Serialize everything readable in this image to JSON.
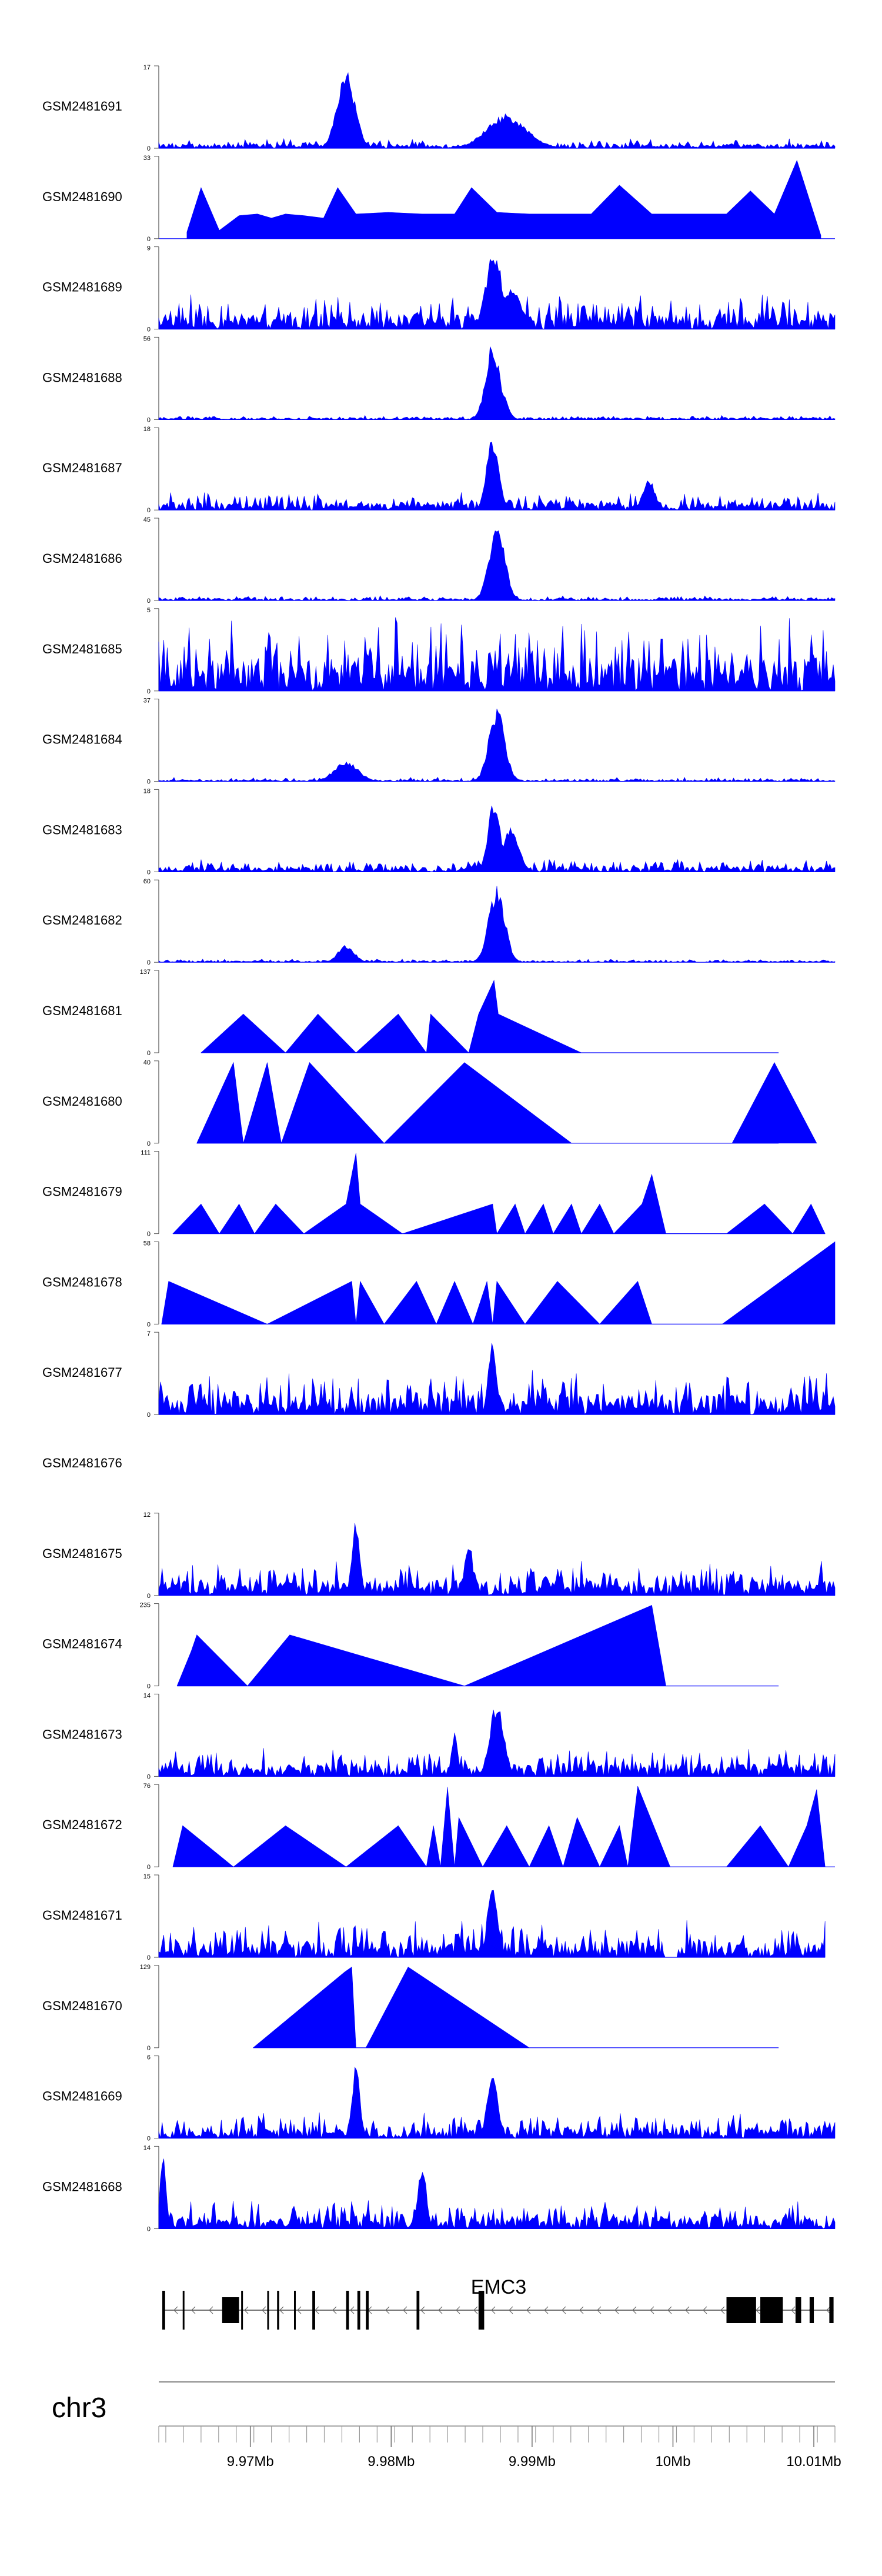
{
  "chart_data": {
    "type": "area",
    "title": "",
    "chromosome": "chr3",
    "gene": "EMC3",
    "xlim": [
      9.9635,
      10.0115
    ],
    "x_ticks": [
      {
        "value": 9.97,
        "label": "9.97Mb"
      },
      {
        "value": 9.98,
        "label": "9.98Mb"
      },
      {
        "value": 9.99,
        "label": "9.99Mb"
      },
      {
        "value": 10.0,
        "label": "10Mb"
      },
      {
        "value": 10.01,
        "label": "10.01Mb"
      }
    ],
    "fill_color": "#0000FF",
    "tracks": [
      {
        "name": "GSM2481691",
        "ymax": "17",
        "style": "dense",
        "peaks": [
          [
            9.9768,
            0.95,
            0.0009
          ],
          [
            9.9882,
            0.42,
            0.002
          ]
        ],
        "xrange": [
          9.9635,
          10.0115
        ],
        "noise": 0.12,
        "seed": 1
      },
      {
        "name": "GSM2481690",
        "ymax": "33",
        "style": "sparse",
        "tri": [
          [
            9.9655,
            0.08
          ],
          [
            9.9665,
            0.62
          ],
          [
            9.9678,
            0.1
          ],
          [
            9.9692,
            0.28
          ],
          [
            9.9705,
            0.3
          ],
          [
            9.9715,
            0.25
          ],
          [
            9.9725,
            0.3
          ],
          [
            9.9738,
            0.28
          ],
          [
            9.9752,
            0.25
          ],
          [
            9.9762,
            0.62
          ],
          [
            9.9775,
            0.3
          ],
          [
            9.9798,
            0.32
          ],
          [
            9.9822,
            0.3
          ],
          [
            9.9845,
            0.3
          ],
          [
            9.9857,
            0.62
          ],
          [
            9.9875,
            0.32
          ],
          [
            9.9898,
            0.3
          ],
          [
            9.9918,
            0.3
          ],
          [
            9.9942,
            0.3
          ],
          [
            9.9962,
            0.65
          ],
          [
            9.9985,
            0.3
          ],
          [
            10.0008,
            0.3
          ],
          [
            10.0022,
            0.3
          ],
          [
            10.0038,
            0.3
          ],
          [
            10.0055,
            0.58
          ],
          [
            10.0072,
            0.3
          ],
          [
            10.0088,
            0.95
          ],
          [
            10.0105,
            0.04
          ]
        ],
        "xrange": [
          9.9635,
          10.0115
        ],
        "seed": 2
      },
      {
        "name": "GSM2481689",
        "ymax": "9",
        "style": "dense",
        "peaks": [
          [
            9.9873,
            0.98,
            0.0008
          ],
          [
            9.9885,
            0.5,
            0.001
          ]
        ],
        "xrange": [
          9.9635,
          10.0115
        ],
        "noise": 0.42,
        "seed": 3
      },
      {
        "name": "GSM2481688",
        "ymax": "56",
        "style": "dense",
        "peaks": [
          [
            9.9872,
            0.95,
            0.0007
          ],
          [
            9.9878,
            0.4,
            0.0006
          ]
        ],
        "xrange": [
          9.9635,
          10.0115
        ],
        "noise": 0.05,
        "seed": 4
      },
      {
        "name": "GSM2481687",
        "ymax": "18",
        "style": "dense",
        "peaks": [
          [
            9.9872,
            0.92,
            0.0006
          ],
          [
            9.9983,
            0.4,
            0.0006
          ]
        ],
        "xrange": [
          9.9635,
          10.0115
        ],
        "noise": 0.22,
        "seed": 5
      },
      {
        "name": "GSM2481686",
        "ymax": "45",
        "style": "dense",
        "peaks": [
          [
            9.9875,
            0.94,
            0.0008
          ]
        ],
        "xrange": [
          9.9635,
          10.0115
        ],
        "noise": 0.06,
        "seed": 6
      },
      {
        "name": "GSM2481685",
        "ymax": "5",
        "style": "dense",
        "peaks": [],
        "xrange": [
          9.9635,
          10.0115
        ],
        "noise": 0.9,
        "seed": 7
      },
      {
        "name": "GSM2481684",
        "ymax": "37",
        "style": "dense",
        "peaks": [
          [
            9.9875,
            0.9,
            0.0008
          ],
          [
            9.9768,
            0.25,
            0.0012
          ]
        ],
        "xrange": [
          9.9635,
          10.0115
        ],
        "noise": 0.05,
        "seed": 8
      },
      {
        "name": "GSM2481683",
        "ymax": "18",
        "style": "dense",
        "peaks": [
          [
            9.9873,
            0.92,
            0.0006
          ],
          [
            9.9885,
            0.55,
            0.0008
          ]
        ],
        "xrange": [
          9.9635,
          10.0115
        ],
        "noise": 0.15,
        "seed": 9
      },
      {
        "name": "GSM2481682",
        "ymax": "60",
        "style": "dense",
        "peaks": [
          [
            9.9875,
            0.95,
            0.0008
          ],
          [
            9.9768,
            0.22,
            0.0008
          ]
        ],
        "xrange": [
          9.9635,
          10.0115
        ],
        "noise": 0.04,
        "seed": 10
      },
      {
        "name": "GSM2481681",
        "ymax": "137",
        "style": "sparse",
        "tri": [
          [
            9.9665,
            0.0
          ],
          [
            9.9695,
            0.47
          ],
          [
            9.9725,
            0.0
          ],
          [
            9.9748,
            0.47
          ],
          [
            9.9775,
            0.0
          ],
          [
            9.9805,
            0.47
          ],
          [
            9.9825,
            0.0
          ],
          [
            9.9828,
            0.47
          ],
          [
            9.9855,
            0.0
          ],
          [
            9.9862,
            0.47
          ],
          [
            9.9873,
            0.88
          ],
          [
            9.9876,
            0.47
          ],
          [
            9.9935,
            0.0
          ]
        ],
        "xrange": [
          9.9665,
          10.0075
        ],
        "seed": 11
      },
      {
        "name": "GSM2481680",
        "ymax": "40",
        "style": "sparse",
        "tri": [
          [
            9.9662,
            0.0
          ],
          [
            9.9688,
            0.98
          ],
          [
            9.9695,
            0.0
          ],
          [
            9.9712,
            0.98
          ],
          [
            9.9722,
            0.0
          ],
          [
            9.9742,
            0.98
          ],
          [
            9.9795,
            0.0
          ],
          [
            9.9852,
            0.98
          ],
          [
            9.9928,
            0.0
          ],
          [
            10.0042,
            0.0
          ],
          [
            10.0072,
            0.98
          ],
          [
            10.0102,
            0.0
          ]
        ],
        "xrange": [
          9.9662,
          10.0075
        ],
        "seed": 12
      },
      {
        "name": "GSM2481679",
        "ymax": "111",
        "style": "sparse",
        "tri": [
          [
            9.9645,
            0.0
          ],
          [
            9.9665,
            0.36
          ],
          [
            9.9678,
            0.0
          ],
          [
            9.9692,
            0.36
          ],
          [
            9.9703,
            0.0
          ],
          [
            9.9718,
            0.36
          ],
          [
            9.9738,
            0.0
          ],
          [
            9.9768,
            0.36
          ],
          [
            9.9775,
            0.98
          ],
          [
            9.9778,
            0.36
          ],
          [
            9.9808,
            0.0
          ],
          [
            9.9872,
            0.36
          ],
          [
            9.9875,
            0.0
          ],
          [
            9.9888,
            0.36
          ],
          [
            9.9895,
            0.0
          ],
          [
            9.9908,
            0.36
          ],
          [
            9.9915,
            0.0
          ],
          [
            9.9928,
            0.36
          ],
          [
            9.9935,
            0.0
          ],
          [
            9.9948,
            0.36
          ],
          [
            9.9958,
            0.0
          ],
          [
            9.9978,
            0.36
          ],
          [
            9.9985,
            0.72
          ],
          [
            9.9995,
            0.0
          ],
          [
            10.0038,
            0.0
          ],
          [
            10.0065,
            0.36
          ],
          [
            10.0085,
            0.0
          ],
          [
            10.0098,
            0.36
          ],
          [
            10.0108,
            0.0
          ]
        ],
        "xrange": [
          9.9645,
          10.0108
        ],
        "seed": 13
      },
      {
        "name": "GSM2481678",
        "ymax": "58",
        "style": "sparse",
        "tri": [
          [
            9.9637,
            0.0
          ],
          [
            9.9642,
            0.52
          ],
          [
            9.9712,
            0.0
          ],
          [
            9.9772,
            0.52
          ],
          [
            9.9775,
            0.0
          ],
          [
            9.9778,
            0.52
          ],
          [
            9.9795,
            0.0
          ],
          [
            9.9818,
            0.52
          ],
          [
            9.9832,
            0.0
          ],
          [
            9.9845,
            0.52
          ],
          [
            9.9858,
            0.0
          ],
          [
            9.9868,
            0.52
          ],
          [
            9.9872,
            0.0
          ],
          [
            9.9875,
            0.52
          ],
          [
            9.9895,
            0.0
          ],
          [
            9.9918,
            0.52
          ],
          [
            9.9948,
            0.0
          ],
          [
            9.9975,
            0.52
          ],
          [
            9.9985,
            0.0
          ],
          [
            10.0035,
            0.0
          ],
          [
            10.0115,
            1.0
          ]
        ],
        "xrange": [
          9.9637,
          10.0115
        ],
        "seed": 14
      },
      {
        "name": "GSM2481677",
        "ymax": "7",
        "style": "dense",
        "peaks": [
          [
            9.9872,
            0.95,
            0.0004
          ]
        ],
        "xrange": [
          9.9635,
          10.0115
        ],
        "noise": 0.55,
        "seed": 15
      },
      {
        "name": "GSM2481676",
        "ymax": "",
        "style": "empty",
        "xrange": [
          9.9635,
          10.0115
        ],
        "seed": 16
      },
      {
        "name": "GSM2481675",
        "ymax": "12",
        "style": "dense",
        "peaks": [
          [
            9.9775,
            0.92,
            0.0004
          ],
          [
            9.9855,
            0.7,
            0.0004
          ]
        ],
        "xrange": [
          9.9635,
          10.0115
        ],
        "noise": 0.42,
        "seed": 17
      },
      {
        "name": "GSM2481674",
        "ymax": "235",
        "style": "sparse",
        "tri": [
          [
            9.9648,
            0.0
          ],
          [
            9.9658,
            0.42
          ],
          [
            9.9662,
            0.62
          ],
          [
            9.9698,
            0.0
          ],
          [
            9.9728,
            0.62
          ],
          [
            9.9852,
            0.0
          ],
          [
            9.9985,
            0.98
          ],
          [
            9.9995,
            0.0
          ]
        ],
        "xrange": [
          9.9648,
          10.0075
        ],
        "seed": 18
      },
      {
        "name": "GSM2481673",
        "ymax": "14",
        "style": "dense",
        "peaks": [
          [
            9.9875,
            0.92,
            0.0007
          ],
          [
            9.9845,
            0.55,
            0.0003
          ]
        ],
        "xrange": [
          9.9635,
          10.0115
        ],
        "noise": 0.35,
        "seed": 19
      },
      {
        "name": "GSM2481672",
        "ymax": "76",
        "style": "sparse",
        "tri": [
          [
            9.9645,
            0.0
          ],
          [
            9.9652,
            0.5
          ],
          [
            9.9688,
            0.0
          ],
          [
            9.9725,
            0.5
          ],
          [
            9.9768,
            0.0
          ],
          [
            9.9805,
            0.5
          ],
          [
            9.9825,
            0.0
          ],
          [
            9.983,
            0.5
          ],
          [
            9.9835,
            0.0
          ],
          [
            9.984,
            0.97
          ],
          [
            9.9845,
            0.0
          ],
          [
            9.9848,
            0.6
          ],
          [
            9.9865,
            0.0
          ],
          [
            9.9882,
            0.5
          ],
          [
            9.9898,
            0.0
          ],
          [
            9.9912,
            0.5
          ],
          [
            9.9922,
            0.0
          ],
          [
            9.9932,
            0.6
          ],
          [
            9.9948,
            0.0
          ],
          [
            9.9962,
            0.5
          ],
          [
            9.9968,
            0.0
          ],
          [
            9.9975,
            0.98
          ],
          [
            9.9998,
            0.0
          ],
          [
            10.0038,
            0.0
          ],
          [
            10.0062,
            0.5
          ],
          [
            10.0082,
            0.0
          ],
          [
            10.0095,
            0.5
          ],
          [
            10.0102,
            0.94
          ],
          [
            10.0108,
            0.0
          ]
        ],
        "xrange": [
          9.9645,
          10.0115
        ],
        "seed": 20
      },
      {
        "name": "GSM2481671",
        "ymax": "15",
        "style": "dense",
        "peaks": [
          [
            9.9872,
            0.95,
            0.0005
          ]
        ],
        "xrange": [
          9.9635,
          10.0108
        ],
        "noise": 0.45,
        "gap": [
          9.9995,
          10.0003
        ],
        "seed": 21
      },
      {
        "name": "GSM2481670",
        "ymax": "129",
        "style": "sparse",
        "tri": [
          [
            9.9702,
            0.0
          ],
          [
            9.9767,
            0.92
          ],
          [
            9.9772,
            0.98
          ],
          [
            9.9775,
            0.0
          ],
          [
            9.9782,
            0.0
          ],
          [
            9.9812,
            0.98
          ],
          [
            9.9898,
            0.0
          ]
        ],
        "xrange": [
          9.9702,
          10.0075
        ],
        "seed": 22
      },
      {
        "name": "GSM2481669",
        "ymax": "6",
        "style": "dense",
        "peaks": [
          [
            9.9872,
            0.95,
            0.0005
          ],
          [
            9.9775,
            0.9,
            0.0004
          ]
        ],
        "xrange": [
          9.9635,
          10.0115
        ],
        "noise": 0.32,
        "seed": 23
      },
      {
        "name": "GSM2481668",
        "ymax": "14",
        "style": "dense",
        "peaks": [
          [
            9.9638,
            0.95,
            0.0003
          ],
          [
            9.9822,
            0.82,
            0.0004
          ]
        ],
        "xrange": [
          9.9635,
          10.0115
        ],
        "noise": 0.36,
        "seed": 24
      }
    ],
    "gene_exons": [
      [
        9.96375,
        9.96395,
        "s"
      ],
      [
        9.9652,
        9.9653,
        "s"
      ],
      [
        9.968,
        9.9692,
        "b"
      ],
      [
        9.96935,
        9.96945,
        "s"
      ],
      [
        9.9712,
        9.9713,
        "s"
      ],
      [
        9.9719,
        9.97205,
        "s"
      ],
      [
        9.9731,
        9.9732,
        "s"
      ],
      [
        9.9744,
        9.9746,
        "s"
      ],
      [
        9.9768,
        9.977,
        "s"
      ],
      [
        9.9776,
        9.9778,
        "s"
      ],
      [
        9.9782,
        9.9784,
        "s"
      ],
      [
        9.9818,
        9.982,
        "s"
      ],
      [
        9.9862,
        9.9866,
        "s"
      ],
      [
        10.0038,
        10.0059,
        "b"
      ],
      [
        10.0062,
        10.0078,
        "b"
      ],
      [
        10.0087,
        10.0091,
        "b"
      ],
      [
        10.0097,
        10.01,
        "b"
      ],
      [
        10.0111,
        10.0114,
        "b"
      ]
    ],
    "gene_range": [
      9.96375,
      10.0114
    ],
    "strand": "-"
  }
}
